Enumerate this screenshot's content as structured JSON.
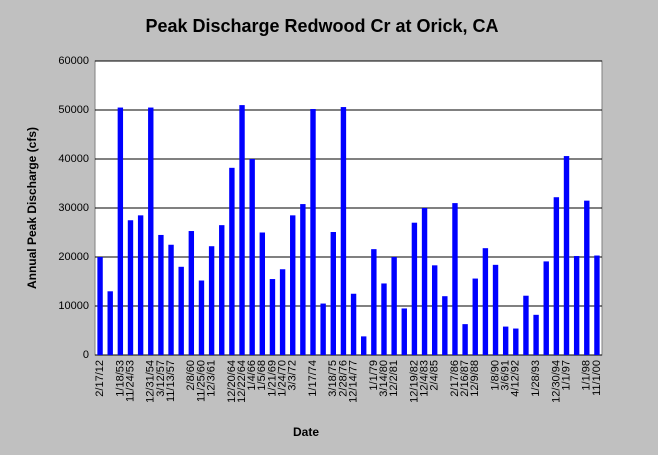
{
  "chart_data": {
    "type": "bar",
    "title": "Peak Discharge Redwood Cr at Orick, CA",
    "x_label": "Date",
    "y_label": "Annual Peak Discharge (cfs)",
    "categories": [
      "2/17/12",
      null,
      "1/18/53",
      "11/24/53",
      null,
      "12/31/54",
      "3/12/57",
      "11/13/57",
      null,
      "2/8/60",
      "11/25/60",
      "12/3/61",
      null,
      "12/20/64",
      "12/22/64",
      "1/4/66",
      "1/5/68",
      "1/21/69",
      "1/24/70",
      "3/3/72",
      null,
      "1/17/74",
      null,
      "3/18/75",
      "2/28/76",
      "12/14/77",
      null,
      "1/1/79",
      "3/14/80",
      "12/2/81",
      null,
      "12/19/82",
      "12/4/83",
      "2/4/85",
      null,
      "2/17/86",
      "2/16/87",
      "12/9/88",
      null,
      "1/8/90",
      "3/6/91",
      "4/12/92",
      null,
      "1/28/93",
      null,
      "12/30/94",
      "1/1/97",
      null,
      "1/1/98",
      "11/1/00"
    ],
    "values": [
      20000,
      13000,
      50500,
      27500,
      28500,
      50500,
      24500,
      22500,
      18000,
      25300,
      15200,
      22200,
      26500,
      38200,
      51000,
      40000,
      25000,
      15500,
      17500,
      28500,
      30800,
      50200,
      10500,
      25100,
      50600,
      12500,
      3800,
      21600,
      14600,
      20000,
      9500,
      27000,
      30000,
      18300,
      12000,
      31000,
      6300,
      15600,
      21800,
      18400,
      5800,
      5400,
      12100,
      8200,
      19100,
      32200,
      40600,
      20200,
      31500,
      20300
    ],
    "color": "#0000ff",
    "ylim": [
      0,
      60000
    ],
    "yticks": [
      0,
      10000,
      20000,
      30000,
      40000,
      50000,
      60000
    ],
    "grid": true
  }
}
